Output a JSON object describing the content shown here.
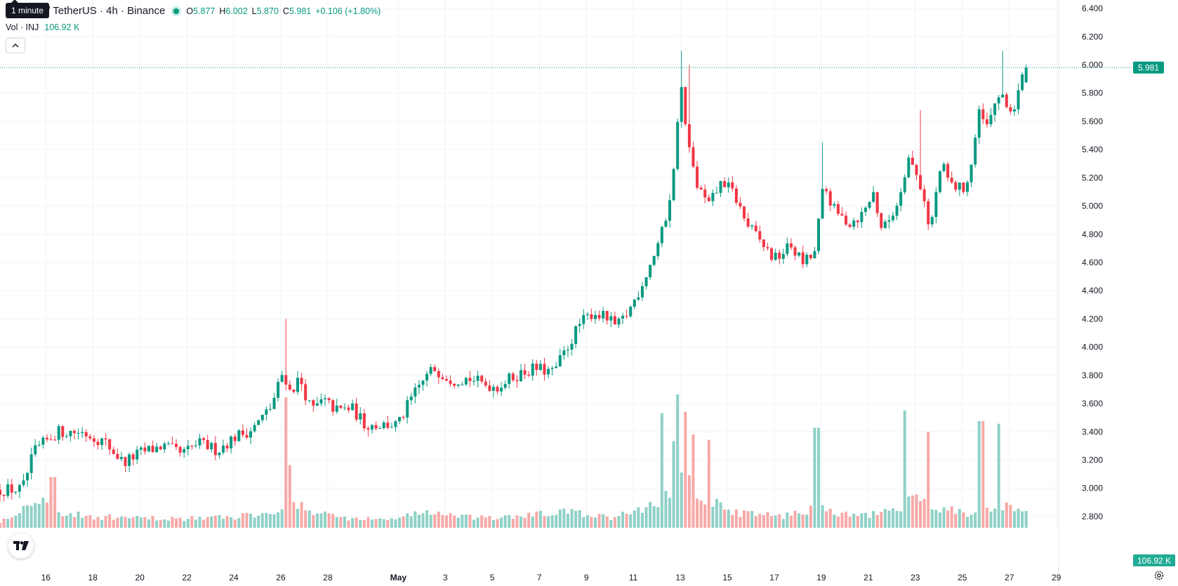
{
  "header": {
    "symbol_title": "Injective / TetherUS · 4h · Binance",
    "tooltip": "1 minute",
    "ohlc": [
      {
        "key": "O",
        "value": "5.877"
      },
      {
        "key": "H",
        "value": "6.002"
      },
      {
        "key": "L",
        "value": "5.870"
      },
      {
        "key": "C",
        "value": "5.981"
      }
    ],
    "change": "+0.106 (+1.80%)",
    "volume_label": "Vol · INJ",
    "volume_value": "106.92 K"
  },
  "colors": {
    "up": "#089981",
    "down": "#f23645",
    "volume_up": "#8fd1c6",
    "volume_down": "#f7a9a7",
    "grid": "#f0f3fa",
    "text": "#131722"
  },
  "icons": {
    "collapse": "chevron-up-icon",
    "logo": "tradingview-logo-icon",
    "settings": "gear-icon"
  },
  "chart_data": {
    "type": "candlestick",
    "price_axis": {
      "ticks": [
        "6.400",
        "6.200",
        "6.000",
        "5.800",
        "5.600",
        "5.400",
        "5.200",
        "5.000",
        "4.800",
        "4.600",
        "4.400",
        "4.200",
        "4.000",
        "3.800",
        "3.600",
        "3.400",
        "3.200",
        "3.000",
        "2.800"
      ],
      "range": [
        2.72,
        6.46
      ],
      "last_price_label": "5.981",
      "last_price": 5.981
    },
    "time_axis": {
      "labels": [
        {
          "text": "16",
          "day": 16,
          "bold": false
        },
        {
          "text": "18",
          "day": 18,
          "bold": false
        },
        {
          "text": "20",
          "day": 20,
          "bold": false
        },
        {
          "text": "22",
          "day": 22,
          "bold": false
        },
        {
          "text": "24",
          "day": 24,
          "bold": false
        },
        {
          "text": "26",
          "day": 26,
          "bold": false
        },
        {
          "text": "28",
          "day": 28,
          "bold": false
        },
        {
          "text": "May",
          "day": 31,
          "bold": true
        },
        {
          "text": "3",
          "day": 33,
          "bold": false
        },
        {
          "text": "5",
          "day": 35,
          "bold": false
        },
        {
          "text": "7",
          "day": 37,
          "bold": false
        },
        {
          "text": "9",
          "day": 39,
          "bold": false
        },
        {
          "text": "11",
          "day": 41,
          "bold": false
        },
        {
          "text": "13",
          "day": 43,
          "bold": false
        },
        {
          "text": "15",
          "day": 45,
          "bold": false
        },
        {
          "text": "17",
          "day": 47,
          "bold": false
        },
        {
          "text": "19",
          "day": 49,
          "bold": false
        },
        {
          "text": "21",
          "day": 51,
          "bold": false
        },
        {
          "text": "23",
          "day": 53,
          "bold": false
        },
        {
          "text": "25",
          "day": 55,
          "bold": false
        },
        {
          "text": "27",
          "day": 57,
          "bold": false
        },
        {
          "text": "29",
          "day": 59,
          "bold": false
        }
      ],
      "range": [
        14.05,
        59.1
      ]
    },
    "close_path": [
      [
        14.05,
        2.99
      ],
      [
        15.0,
        2.99
      ],
      [
        15.5,
        3.26
      ],
      [
        16.5,
        3.4
      ],
      [
        17.5,
        3.4
      ],
      [
        18.5,
        3.33
      ],
      [
        19.3,
        3.18
      ],
      [
        20.0,
        3.25
      ],
      [
        21.0,
        3.3
      ],
      [
        21.8,
        3.24
      ],
      [
        22.5,
        3.32
      ],
      [
        23.3,
        3.27
      ],
      [
        24.0,
        3.36
      ],
      [
        24.8,
        3.42
      ],
      [
        25.6,
        3.58
      ],
      [
        26.1,
        3.83
      ],
      [
        26.4,
        3.68
      ],
      [
        26.8,
        3.78
      ],
      [
        27.3,
        3.55
      ],
      [
        27.8,
        3.62
      ],
      [
        28.4,
        3.55
      ],
      [
        29.0,
        3.57
      ],
      [
        29.6,
        3.45
      ],
      [
        30.3,
        3.45
      ],
      [
        31.0,
        3.45
      ],
      [
        31.5,
        3.62
      ],
      [
        32.0,
        3.75
      ],
      [
        32.5,
        3.85
      ],
      [
        33.3,
        3.77
      ],
      [
        34.0,
        3.78
      ],
      [
        34.6,
        3.74
      ],
      [
        35.2,
        3.72
      ],
      [
        36.0,
        3.8
      ],
      [
        36.8,
        3.85
      ],
      [
        37.6,
        3.82
      ],
      [
        38.2,
        4.0
      ],
      [
        38.7,
        4.16
      ],
      [
        39.3,
        4.25
      ],
      [
        39.9,
        4.2
      ],
      [
        40.3,
        4.14
      ],
      [
        40.8,
        4.25
      ],
      [
        41.3,
        4.42
      ],
      [
        41.8,
        4.62
      ],
      [
        42.3,
        4.85
      ],
      [
        42.7,
        5.2
      ],
      [
        43.0,
        5.9
      ],
      [
        43.3,
        5.45
      ],
      [
        43.7,
        5.15
      ],
      [
        44.2,
        5.0
      ],
      [
        44.8,
        5.18
      ],
      [
        45.3,
        5.08
      ],
      [
        45.8,
        4.88
      ],
      [
        46.4,
        4.75
      ],
      [
        47.0,
        4.62
      ],
      [
        47.7,
        4.72
      ],
      [
        48.2,
        4.6
      ],
      [
        48.7,
        4.65
      ],
      [
        49.1,
        5.15
      ],
      [
        49.6,
        4.95
      ],
      [
        50.2,
        4.88
      ],
      [
        50.8,
        4.95
      ],
      [
        51.2,
        5.1
      ],
      [
        51.6,
        4.82
      ],
      [
        52.2,
        5.0
      ],
      [
        52.7,
        5.35
      ],
      [
        53.1,
        5.2
      ],
      [
        53.4,
        5.05
      ],
      [
        53.6,
        4.8
      ],
      [
        54.1,
        5.3
      ],
      [
        54.5,
        5.15
      ],
      [
        55.0,
        5.12
      ],
      [
        55.3,
        5.2
      ],
      [
        55.7,
        5.65
      ],
      [
        56.1,
        5.55
      ],
      [
        56.5,
        5.8
      ],
      [
        56.9,
        5.7
      ],
      [
        57.2,
        5.68
      ],
      [
        57.5,
        5.88
      ],
      [
        57.72,
        5.981
      ]
    ],
    "volume_path": [
      [
        14.05,
        0.05
      ],
      [
        15.0,
        0.14
      ],
      [
        15.5,
        0.25
      ],
      [
        16.5,
        0.12
      ],
      [
        17.5,
        0.09
      ],
      [
        18.5,
        0.08
      ],
      [
        20.0,
        0.07
      ],
      [
        22.0,
        0.07
      ],
      [
        24.0,
        0.08
      ],
      [
        25.5,
        0.12
      ],
      [
        26.3,
        0.19
      ],
      [
        27.0,
        0.14
      ],
      [
        28.0,
        0.1
      ],
      [
        29.0,
        0.07
      ],
      [
        30.5,
        0.06
      ],
      [
        31.5,
        0.1
      ],
      [
        32.5,
        0.12
      ],
      [
        33.5,
        0.08
      ],
      [
        35.0,
        0.07
      ],
      [
        36.5,
        0.09
      ],
      [
        38.0,
        0.12
      ],
      [
        39.0,
        0.1
      ],
      [
        40.0,
        0.07
      ],
      [
        41.0,
        0.12
      ],
      [
        41.8,
        0.17
      ],
      [
        42.5,
        0.24
      ],
      [
        43.0,
        0.55
      ],
      [
        43.3,
        0.4
      ],
      [
        43.7,
        0.28
      ],
      [
        44.3,
        0.2
      ],
      [
        45.0,
        0.13
      ],
      [
        46.0,
        0.1
      ],
      [
        47.0,
        0.09
      ],
      [
        48.0,
        0.1
      ],
      [
        49.0,
        0.18
      ],
      [
        49.5,
        0.1
      ],
      [
        50.5,
        0.09
      ],
      [
        51.5,
        0.1
      ],
      [
        52.5,
        0.15
      ],
      [
        53.0,
        0.23
      ],
      [
        53.7,
        0.17
      ],
      [
        54.5,
        0.14
      ],
      [
        55.5,
        0.1
      ],
      [
        56.0,
        0.15
      ],
      [
        56.8,
        0.16
      ],
      [
        57.5,
        0.1
      ],
      [
        57.72,
        0.1
      ]
    ],
    "volume_spikes": [
      [
        15.3,
        0.47
      ],
      [
        16.3,
        0.38
      ],
      [
        26.2,
        0.98
      ],
      [
        26.4,
        0.47
      ],
      [
        42.3,
        0.86
      ],
      [
        42.7,
        0.65
      ],
      [
        42.9,
        1.0
      ],
      [
        43.3,
        0.87
      ],
      [
        43.6,
        0.7
      ],
      [
        44.3,
        0.66
      ],
      [
        48.8,
        0.75
      ],
      [
        52.5,
        0.88
      ],
      [
        53.6,
        0.72
      ],
      [
        55.8,
        0.8
      ],
      [
        56.6,
        0.78
      ]
    ],
    "wick_spikes": [
      [
        26.2,
        4.2
      ],
      [
        43.0,
        6.1
      ],
      [
        43.4,
        6.0
      ],
      [
        49.0,
        5.45
      ],
      [
        53.2,
        5.68
      ],
      [
        56.7,
        6.1
      ]
    ]
  }
}
